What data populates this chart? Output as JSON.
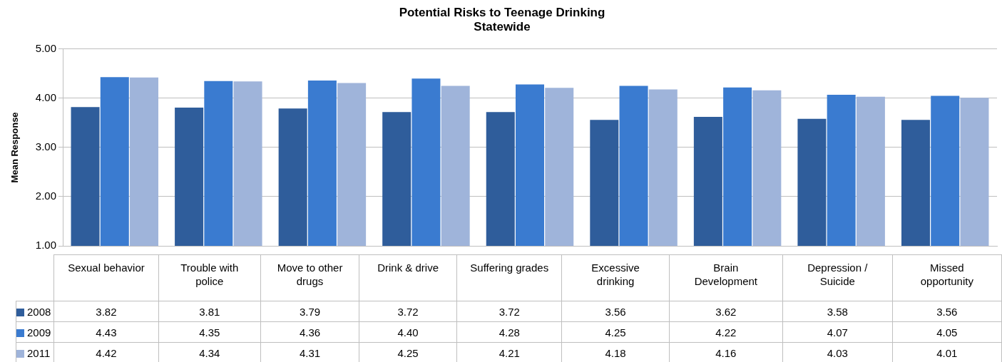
{
  "chart_data": {
    "type": "bar",
    "title": "Potential Risks to Teenage Drinking",
    "subtitle": "Statewide",
    "ylabel": "Mean Response",
    "categories": [
      "Sexual behavior",
      "Trouble with police",
      "Move to other drugs",
      "Drink & drive",
      "Suffering grades",
      "Excessive drinking",
      "Brain Development",
      "Depression / Suicide",
      "Missed opportunity"
    ],
    "series": [
      {
        "name": "2008",
        "color": "#2f5d9b",
        "values": [
          3.82,
          3.81,
          3.79,
          3.72,
          3.72,
          3.56,
          3.62,
          3.58,
          3.56
        ],
        "value_labels": [
          "3.82",
          "3.81",
          "3.79",
          "3.72",
          "3.72",
          "3.56",
          "3.62",
          "3.58",
          "3.56"
        ]
      },
      {
        "name": "2009",
        "color": "#3a7bd0",
        "values": [
          4.43,
          4.35,
          4.36,
          4.4,
          4.28,
          4.25,
          4.22,
          4.07,
          4.05
        ],
        "value_labels": [
          "4.43",
          "4.35",
          "4.36",
          "4.40",
          "4.28",
          "4.25",
          "4.22",
          "4.07",
          "4.05"
        ]
      },
      {
        "name": "2011",
        "color": "#9fb4da",
        "values": [
          4.42,
          4.34,
          4.31,
          4.25,
          4.21,
          4.18,
          4.16,
          4.03,
          4.01
        ],
        "value_labels": [
          "4.42",
          "4.34",
          "4.31",
          "4.25",
          "4.21",
          "4.18",
          "4.16",
          "4.03",
          "4.01"
        ]
      }
    ],
    "ylim": [
      1,
      5
    ],
    "yticks": [
      {
        "value": 1,
        "label": "1.00"
      },
      {
        "value": 2,
        "label": "2.00"
      },
      {
        "value": 3,
        "label": "3.00"
      },
      {
        "value": 4,
        "label": "4.00"
      },
      {
        "value": 5,
        "label": "5.00"
      }
    ],
    "grid": "y",
    "legend": "bottom"
  }
}
